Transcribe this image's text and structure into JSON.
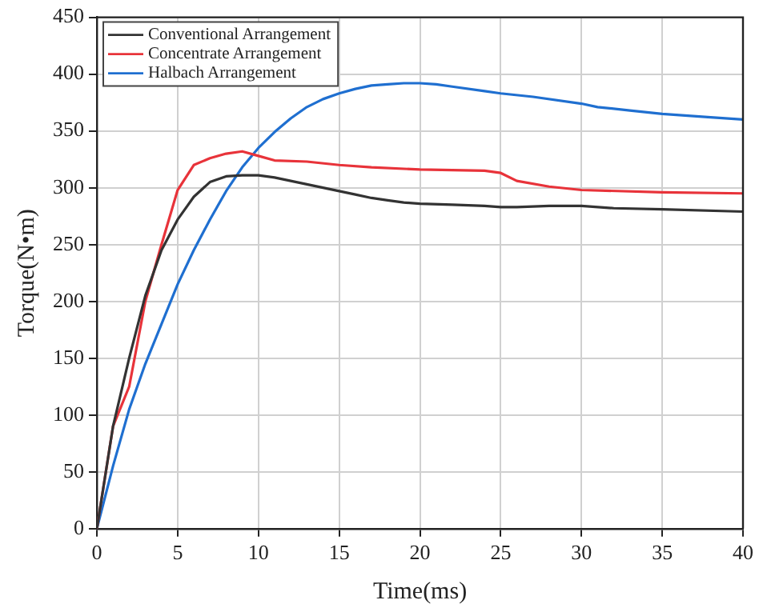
{
  "chart_data": {
    "type": "line",
    "xlabel": "Time(ms)",
    "ylabel": "Torque(N•m)",
    "xlim": [
      0,
      40
    ],
    "xticks": [
      0,
      5,
      10,
      15,
      20,
      25,
      30,
      35,
      40
    ],
    "ylim": [
      0,
      450
    ],
    "yticks": [
      0,
      50,
      100,
      150,
      200,
      250,
      300,
      350,
      400,
      450
    ],
    "grid": true,
    "legend": "top left",
    "marker": "none",
    "line_style": "solid",
    "series": [
      {
        "name": "Conventional Arrangement",
        "color": "#333333",
        "x": [
          0,
          1,
          2,
          3,
          4,
          5,
          6,
          7,
          8,
          9,
          10,
          11,
          12,
          13,
          14,
          15,
          16,
          17,
          18,
          19,
          20,
          22,
          24,
          25,
          26,
          28,
          29,
          30,
          32,
          35,
          40
        ],
        "values": [
          0,
          90,
          150,
          205,
          245,
          272,
          292,
          305,
          310,
          311,
          311,
          309,
          306,
          303,
          300,
          297,
          294,
          291,
          289,
          287,
          286,
          285,
          284,
          283,
          283,
          284,
          284,
          284,
          282,
          281,
          279
        ]
      },
      {
        "name": "Concentrate Arrangement",
        "color": "#e8333a",
        "x": [
          0,
          1,
          2,
          3,
          4,
          5,
          6,
          7,
          8,
          9,
          10,
          11,
          13,
          15,
          17,
          20,
          24,
          25,
          26,
          28,
          30,
          35,
          40
        ],
        "values": [
          0,
          90,
          125,
          200,
          250,
          298,
          320,
          326,
          330,
          332,
          328,
          324,
          323,
          320,
          318,
          316,
          315,
          313,
          306,
          301,
          298,
          296,
          295
        ]
      },
      {
        "name": "Halbach Arrangement",
        "color": "#1f6fd0",
        "x": [
          0,
          1,
          2,
          3,
          4,
          5,
          6,
          7,
          8,
          9,
          10,
          11,
          12,
          13,
          14,
          15,
          16,
          17,
          18,
          19,
          20,
          21,
          22,
          24,
          25,
          27,
          30,
          31,
          33,
          35,
          38,
          40
        ],
        "values": [
          0,
          55,
          105,
          145,
          180,
          215,
          245,
          272,
          297,
          318,
          335,
          349,
          361,
          371,
          378,
          383,
          387,
          390,
          391,
          392,
          392,
          391,
          389,
          385,
          383,
          380,
          374,
          371,
          368,
          365,
          362,
          360
        ]
      }
    ]
  }
}
